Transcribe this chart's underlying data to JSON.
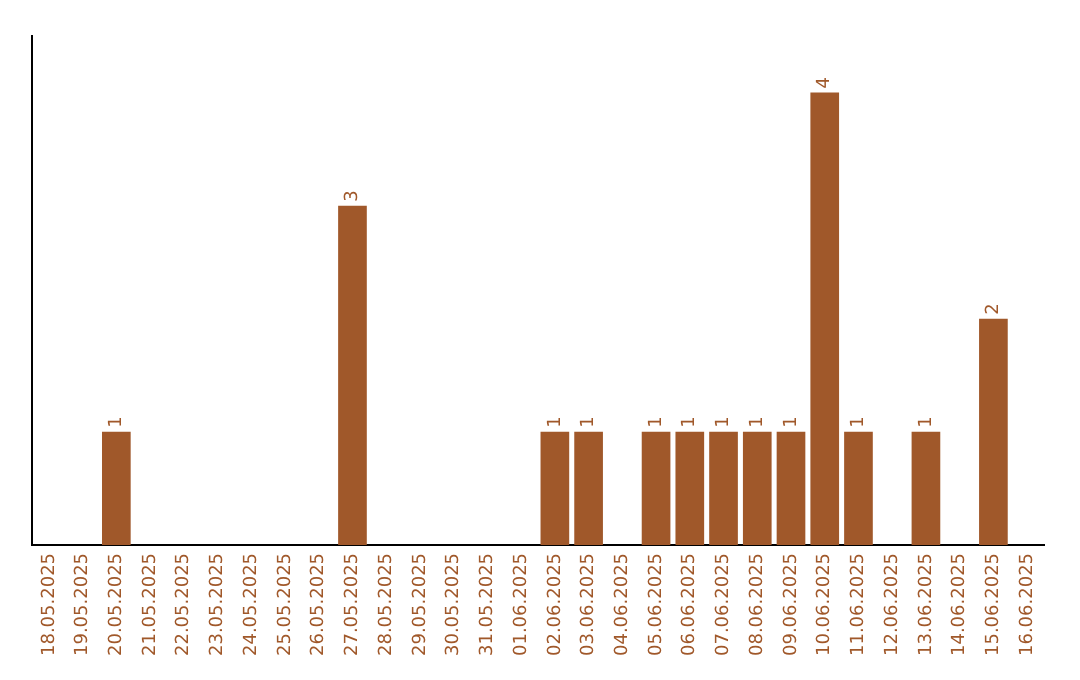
{
  "chart_data": {
    "type": "bar",
    "categories": [
      "18.05.2025",
      "19.05.2025",
      "20.05.2025",
      "21.05.2025",
      "22.05.2025",
      "23.05.2025",
      "24.05.2025",
      "25.05.2025",
      "26.05.2025",
      "27.05.2025",
      "28.05.2025",
      "29.05.2025",
      "30.05.2025",
      "31.05.2025",
      "01.06.2025",
      "02.06.2025",
      "03.06.2025",
      "04.06.2025",
      "05.06.2025",
      "06.06.2025",
      "07.06.2025",
      "08.06.2025",
      "09.06.2025",
      "10.06.2025",
      "11.06.2025",
      "12.06.2025",
      "13.06.2025",
      "14.06.2025",
      "15.06.2025",
      "16.06.2025"
    ],
    "values": [
      0,
      0,
      1,
      0,
      0,
      0,
      0,
      0,
      0,
      3,
      0,
      0,
      0,
      0,
      0,
      1,
      1,
      0,
      1,
      1,
      1,
      1,
      1,
      4,
      1,
      0,
      1,
      0,
      2,
      0
    ],
    "color": "#a0582a",
    "value_labels": [
      null,
      null,
      "1",
      null,
      null,
      null,
      null,
      null,
      null,
      "3",
      null,
      null,
      null,
      null,
      null,
      "1",
      "1",
      null,
      "1",
      "1",
      "1",
      "1",
      "1",
      "4",
      "1",
      null,
      "1",
      null,
      "2",
      null
    ],
    "grid": false,
    "legend": false,
    "tick_labels": "x"
  }
}
